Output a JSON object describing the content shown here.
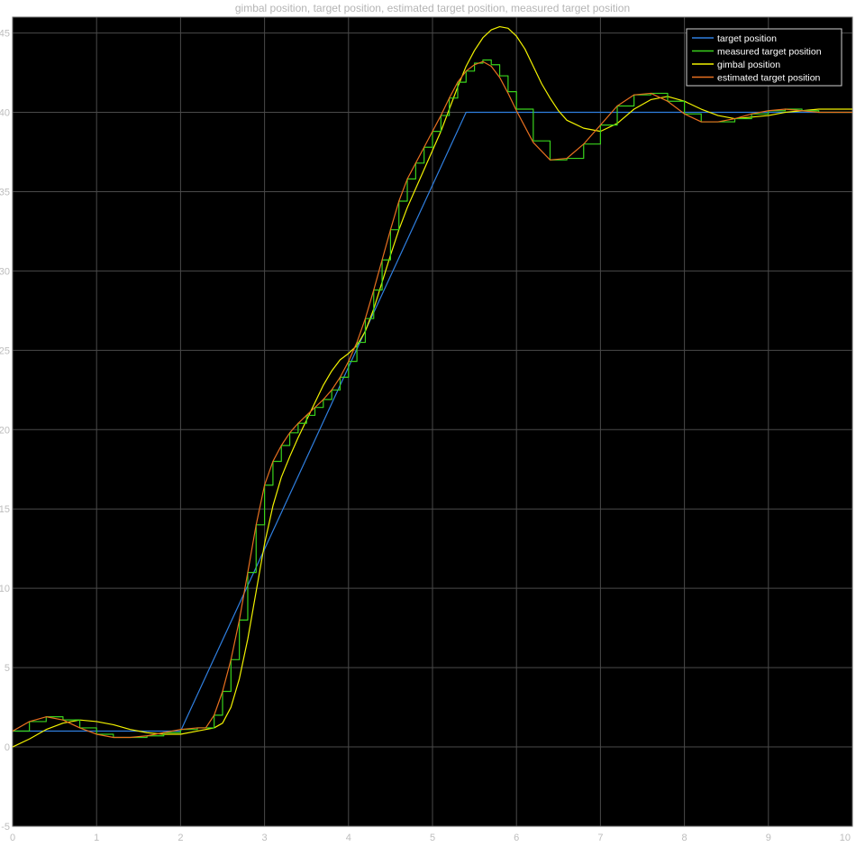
{
  "chart_data": {
    "type": "line",
    "title": "gimbal position, target position, estimated target position, measured target position",
    "xlabel": "",
    "ylabel": "",
    "xlim": [
      0,
      10
    ],
    "ylim": [
      -5,
      46
    ],
    "x_ticks": [
      0,
      1,
      2,
      3,
      4,
      5,
      6,
      7,
      8,
      9,
      10
    ],
    "y_ticks": [
      -5,
      0,
      5,
      10,
      15,
      20,
      25,
      30,
      35,
      40,
      45
    ],
    "grid": true,
    "legend_position": "top-right",
    "background": "#000000",
    "series": [
      {
        "name": "target position",
        "color": "#2f7fe0",
        "step": false,
        "x": [
          0,
          2.0,
          5.4,
          10
        ],
        "y": [
          1.0,
          1.0,
          40.0,
          40.0
        ]
      },
      {
        "name": "measured target position",
        "color": "#39d21c",
        "step": true,
        "x": [
          0,
          0.2,
          0.4,
          0.6,
          0.8,
          1.0,
          1.2,
          1.4,
          1.6,
          1.8,
          2.0,
          2.2,
          2.3,
          2.4,
          2.5,
          2.6,
          2.7,
          2.8,
          2.9,
          3.0,
          3.1,
          3.2,
          3.3,
          3.4,
          3.5,
          3.6,
          3.7,
          3.8,
          3.9,
          4.0,
          4.1,
          4.2,
          4.3,
          4.4,
          4.5,
          4.6,
          4.7,
          4.8,
          4.9,
          5.0,
          5.1,
          5.2,
          5.3,
          5.4,
          5.5,
          5.6,
          5.7,
          5.8,
          5.9,
          6.0,
          6.2,
          6.4,
          6.6,
          6.8,
          7.0,
          7.2,
          7.4,
          7.6,
          7.8,
          8.0,
          8.2,
          8.4,
          8.6,
          8.8,
          9.0,
          9.2,
          9.4,
          9.6,
          9.8,
          10.0
        ],
        "y": [
          1.0,
          1.6,
          1.9,
          1.7,
          1.2,
          0.8,
          0.6,
          0.6,
          0.7,
          0.9,
          1.1,
          1.2,
          1.2,
          2.0,
          3.5,
          5.5,
          8.0,
          11.0,
          14.0,
          16.5,
          18.0,
          19.0,
          19.8,
          20.4,
          20.9,
          21.4,
          21.9,
          22.5,
          23.3,
          24.3,
          25.5,
          27.0,
          28.8,
          30.7,
          32.6,
          34.4,
          35.8,
          36.8,
          37.8,
          38.8,
          39.8,
          40.9,
          41.9,
          42.6,
          43.1,
          43.3,
          43.0,
          42.3,
          41.3,
          40.2,
          38.2,
          37.0,
          37.1,
          38.0,
          39.2,
          40.4,
          41.1,
          41.2,
          40.7,
          39.9,
          39.4,
          39.4,
          39.6,
          39.9,
          40.1,
          40.2,
          40.1,
          40.0,
          40.0,
          40.0
        ]
      },
      {
        "name": "gimbal position",
        "color": "#f2f200",
        "step": false,
        "x": [
          0,
          0.2,
          0.4,
          0.6,
          0.8,
          1.0,
          1.2,
          1.4,
          1.6,
          1.8,
          2.0,
          2.2,
          2.4,
          2.5,
          2.6,
          2.7,
          2.8,
          2.9,
          3.0,
          3.1,
          3.2,
          3.3,
          3.4,
          3.5,
          3.6,
          3.7,
          3.8,
          3.9,
          4.0,
          4.1,
          4.2,
          4.3,
          4.4,
          4.5,
          4.6,
          4.7,
          4.8,
          4.9,
          5.0,
          5.1,
          5.2,
          5.3,
          5.4,
          5.5,
          5.6,
          5.7,
          5.8,
          5.9,
          6.0,
          6.1,
          6.2,
          6.3,
          6.4,
          6.5,
          6.6,
          6.8,
          7.0,
          7.2,
          7.4,
          7.6,
          7.8,
          8.0,
          8.2,
          8.4,
          8.6,
          8.8,
          9.0,
          9.2,
          9.4,
          9.6,
          9.8,
          10.0
        ],
        "y": [
          0.0,
          0.5,
          1.1,
          1.5,
          1.7,
          1.6,
          1.4,
          1.1,
          0.9,
          0.8,
          0.8,
          1.0,
          1.2,
          1.5,
          2.5,
          4.3,
          6.8,
          9.8,
          12.8,
          15.2,
          17.0,
          18.3,
          19.5,
          20.6,
          21.7,
          22.8,
          23.7,
          24.4,
          24.8,
          25.3,
          26.2,
          27.6,
          29.3,
          31.0,
          32.6,
          34.0,
          35.2,
          36.4,
          37.6,
          38.8,
          40.2,
          41.6,
          42.9,
          43.9,
          44.7,
          45.2,
          45.4,
          45.3,
          44.8,
          44.0,
          42.9,
          41.8,
          40.9,
          40.1,
          39.5,
          39.0,
          38.8,
          39.3,
          40.2,
          40.8,
          41.0,
          40.7,
          40.2,
          39.8,
          39.6,
          39.7,
          39.8,
          40.0,
          40.1,
          40.2,
          40.2,
          40.2
        ]
      },
      {
        "name": "estimated target position",
        "color": "#e8701f",
        "step": false,
        "x": [
          0,
          0.2,
          0.4,
          0.6,
          0.8,
          1.0,
          1.2,
          1.4,
          1.6,
          1.8,
          2.0,
          2.2,
          2.3,
          2.4,
          2.5,
          2.6,
          2.7,
          2.8,
          2.9,
          3.0,
          3.1,
          3.2,
          3.3,
          3.4,
          3.5,
          3.6,
          3.7,
          3.8,
          3.9,
          4.0,
          4.1,
          4.2,
          4.3,
          4.4,
          4.5,
          4.6,
          4.7,
          4.8,
          4.9,
          5.0,
          5.1,
          5.2,
          5.3,
          5.4,
          5.5,
          5.6,
          5.7,
          5.8,
          5.9,
          6.0,
          6.2,
          6.4,
          6.6,
          6.8,
          7.0,
          7.2,
          7.4,
          7.6,
          7.8,
          8.0,
          8.2,
          8.4,
          8.6,
          8.8,
          9.0,
          9.2,
          9.4,
          9.6,
          9.8,
          10.0
        ],
        "y": [
          1.0,
          1.6,
          1.9,
          1.7,
          1.2,
          0.8,
          0.6,
          0.6,
          0.7,
          0.9,
          1.1,
          1.2,
          1.2,
          2.0,
          3.5,
          5.5,
          8.0,
          11.0,
          14.0,
          16.5,
          18.0,
          19.0,
          19.8,
          20.4,
          20.9,
          21.4,
          21.9,
          22.5,
          23.3,
          24.3,
          25.5,
          27.0,
          28.8,
          30.7,
          32.6,
          34.4,
          35.8,
          36.8,
          37.8,
          38.8,
          39.8,
          40.9,
          41.9,
          42.6,
          43.0,
          43.2,
          42.9,
          42.2,
          41.2,
          40.1,
          38.1,
          37.0,
          37.1,
          38.0,
          39.2,
          40.4,
          41.1,
          41.2,
          40.7,
          39.9,
          39.4,
          39.4,
          39.6,
          39.9,
          40.1,
          40.2,
          40.1,
          40.0,
          40.0,
          40.0
        ]
      }
    ]
  }
}
